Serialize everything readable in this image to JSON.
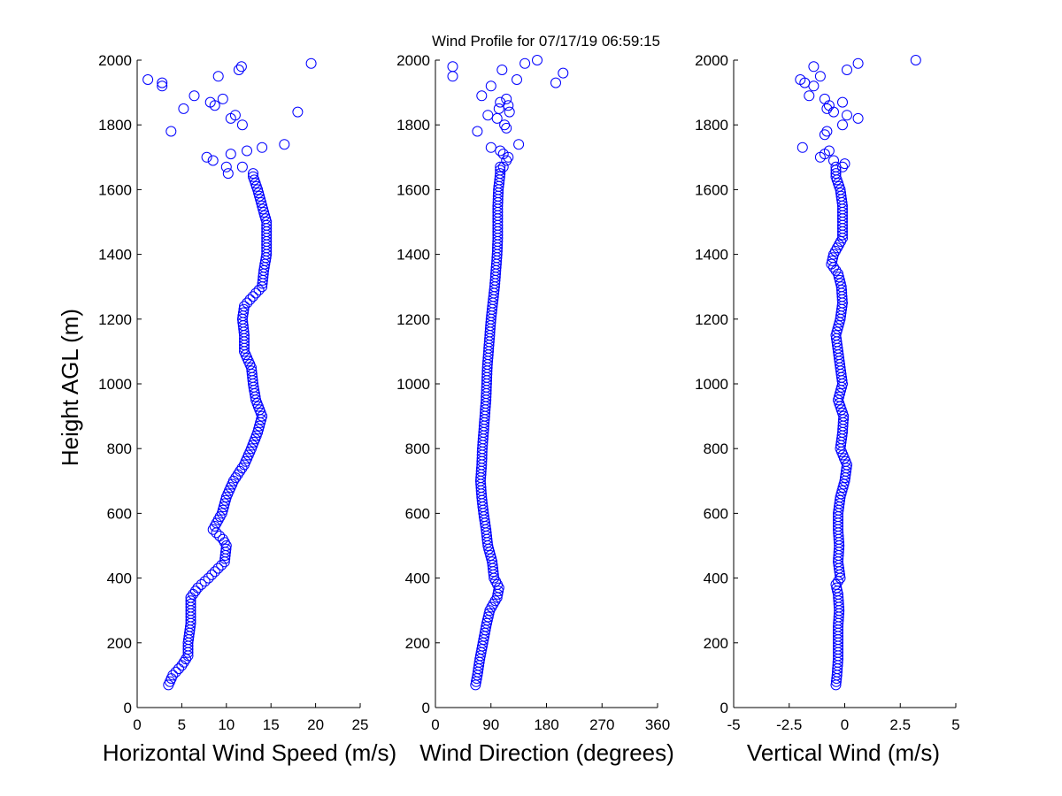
{
  "chart_data": {
    "type": "scatter",
    "title": "Wind Profile for  07/17/19 06:59:15",
    "ylabel": "Height AGL (m)",
    "ylim": [
      0,
      2000
    ],
    "yticks": [
      0,
      200,
      400,
      600,
      800,
      1000,
      1200,
      1400,
      1600,
      1800,
      2000
    ],
    "marker_color": "#0000ff",
    "panels": [
      {
        "id": "speed",
        "xlabel": "Horizontal Wind Speed (m/s)",
        "xlim": [
          0,
          25
        ],
        "xticks": [
          0,
          5,
          10,
          15,
          20,
          25
        ],
        "xtick_labels": [
          "0",
          "5",
          "10",
          "15",
          "20",
          "25"
        ],
        "profile": [
          [
            70,
            3.5
          ],
          [
            100,
            4.0
          ],
          [
            130,
            5.0
          ],
          [
            160,
            5.7
          ],
          [
            200,
            5.7
          ],
          [
            260,
            6.0
          ],
          [
            340,
            6.0
          ],
          [
            370,
            6.8
          ],
          [
            400,
            8.0
          ],
          [
            450,
            9.8
          ],
          [
            500,
            10.0
          ],
          [
            520,
            9.6
          ],
          [
            550,
            8.5
          ],
          [
            600,
            9.5
          ],
          [
            650,
            10.0
          ],
          [
            700,
            10.8
          ],
          [
            750,
            12.0
          ],
          [
            800,
            12.8
          ],
          [
            850,
            13.5
          ],
          [
            900,
            14.0
          ],
          [
            950,
            13.3
          ],
          [
            1000,
            13.0
          ],
          [
            1050,
            12.8
          ],
          [
            1100,
            12.0
          ],
          [
            1150,
            12.0
          ],
          [
            1200,
            11.8
          ],
          [
            1240,
            12.0
          ],
          [
            1280,
            13.3
          ],
          [
            1300,
            14.0
          ],
          [
            1350,
            14.2
          ],
          [
            1400,
            14.5
          ],
          [
            1450,
            14.5
          ],
          [
            1500,
            14.5
          ],
          [
            1550,
            14.0
          ],
          [
            1600,
            13.5
          ],
          [
            1640,
            13.0
          ]
        ],
        "scatter": [
          [
            1650,
            10.2
          ],
          [
            1670,
            10.0
          ],
          [
            1670,
            11.8
          ],
          [
            1690,
            8.5
          ],
          [
            1700,
            7.8
          ],
          [
            1710,
            10.5
          ],
          [
            1720,
            12.3
          ],
          [
            1730,
            14.0
          ],
          [
            1740,
            16.5
          ],
          [
            1780,
            3.8
          ],
          [
            1800,
            11.8
          ],
          [
            1820,
            10.5
          ],
          [
            1830,
            11.0
          ],
          [
            1840,
            18.0
          ],
          [
            1850,
            5.2
          ],
          [
            1860,
            8.7
          ],
          [
            1870,
            8.2
          ],
          [
            1880,
            9.6
          ],
          [
            1890,
            6.4
          ],
          [
            1920,
            2.8
          ],
          [
            1930,
            2.8
          ],
          [
            1940,
            1.2
          ],
          [
            1950,
            9.1
          ],
          [
            1970,
            11.4
          ],
          [
            1980,
            11.7
          ],
          [
            1990,
            19.5
          ]
        ],
        "scatter_below": 1650
      },
      {
        "id": "direction",
        "xlabel": "Wind Direction (degrees)",
        "xlim": [
          0,
          360
        ],
        "xticks": [
          0,
          90,
          180,
          270,
          360
        ],
        "xtick_labels": [
          "0",
          "90",
          "180",
          "270",
          "360"
        ],
        "profile": [
          [
            70,
            65
          ],
          [
            100,
            68
          ],
          [
            150,
            72
          ],
          [
            200,
            77
          ],
          [
            250,
            82
          ],
          [
            300,
            88
          ],
          [
            340,
            100
          ],
          [
            370,
            103
          ],
          [
            400,
            95
          ],
          [
            450,
            92
          ],
          [
            500,
            85
          ],
          [
            550,
            82
          ],
          [
            600,
            78
          ],
          [
            650,
            75
          ],
          [
            700,
            73
          ],
          [
            750,
            75
          ],
          [
            800,
            76
          ],
          [
            850,
            78
          ],
          [
            900,
            80
          ],
          [
            950,
            82
          ],
          [
            1000,
            83
          ],
          [
            1050,
            84
          ],
          [
            1100,
            86
          ],
          [
            1150,
            88
          ],
          [
            1200,
            90
          ],
          [
            1250,
            93
          ],
          [
            1300,
            96
          ],
          [
            1350,
            98
          ],
          [
            1400,
            100
          ],
          [
            1450,
            101
          ],
          [
            1500,
            101
          ],
          [
            1550,
            101
          ],
          [
            1600,
            102
          ],
          [
            1650,
            105
          ]
        ],
        "scatter": [
          [
            1670,
            110
          ],
          [
            1690,
            115
          ],
          [
            1700,
            118
          ],
          [
            1710,
            110
          ],
          [
            1720,
            105
          ],
          [
            1730,
            90
          ],
          [
            1740,
            135
          ],
          [
            1780,
            68
          ],
          [
            1790,
            115
          ],
          [
            1800,
            112
          ],
          [
            1820,
            100
          ],
          [
            1830,
            85
          ],
          [
            1840,
            120
          ],
          [
            1850,
            103
          ],
          [
            1860,
            118
          ],
          [
            1870,
            105
          ],
          [
            1880,
            115
          ],
          [
            1890,
            75
          ],
          [
            1920,
            90
          ],
          [
            1930,
            195
          ],
          [
            1940,
            132
          ],
          [
            1950,
            28
          ],
          [
            1960,
            207
          ],
          [
            1970,
            108
          ],
          [
            1980,
            28
          ],
          [
            1990,
            145
          ],
          [
            2000,
            165
          ]
        ],
        "scatter_below": 1670
      },
      {
        "id": "vertical",
        "xlabel": "Vertical Wind (m/s)",
        "xlim": [
          -5,
          5
        ],
        "xticks": [
          -5,
          -2.5,
          0,
          2.5,
          5
        ],
        "xtick_labels": [
          "-5",
          "-2.5",
          "0",
          "2.5",
          "5"
        ],
        "profile": [
          [
            70,
            -0.4
          ],
          [
            100,
            -0.35
          ],
          [
            150,
            -0.3
          ],
          [
            200,
            -0.3
          ],
          [
            250,
            -0.3
          ],
          [
            300,
            -0.25
          ],
          [
            350,
            -0.3
          ],
          [
            380,
            -0.4
          ],
          [
            400,
            -0.2
          ],
          [
            450,
            -0.3
          ],
          [
            500,
            -0.25
          ],
          [
            550,
            -0.3
          ],
          [
            600,
            -0.3
          ],
          [
            650,
            -0.2
          ],
          [
            700,
            0.0
          ],
          [
            750,
            0.1
          ],
          [
            800,
            -0.2
          ],
          [
            850,
            -0.1
          ],
          [
            900,
            -0.05
          ],
          [
            950,
            -0.3
          ],
          [
            1000,
            -0.1
          ],
          [
            1050,
            -0.2
          ],
          [
            1100,
            -0.3
          ],
          [
            1150,
            -0.4
          ],
          [
            1200,
            -0.2
          ],
          [
            1250,
            -0.1
          ],
          [
            1300,
            -0.15
          ],
          [
            1340,
            -0.3
          ],
          [
            1370,
            -0.6
          ],
          [
            1400,
            -0.5
          ],
          [
            1450,
            -0.1
          ],
          [
            1500,
            -0.1
          ],
          [
            1550,
            -0.1
          ],
          [
            1600,
            -0.2
          ],
          [
            1640,
            -0.4
          ]
        ],
        "scatter": [
          [
            1670,
            -0.1
          ],
          [
            1680,
            0.0
          ],
          [
            1690,
            -0.5
          ],
          [
            1700,
            -1.1
          ],
          [
            1710,
            -0.9
          ],
          [
            1720,
            -0.7
          ],
          [
            1730,
            -1.9
          ],
          [
            1770,
            -0.9
          ],
          [
            1780,
            -0.8
          ],
          [
            1800,
            -0.1
          ],
          [
            1820,
            0.6
          ],
          [
            1830,
            0.1
          ],
          [
            1840,
            -0.5
          ],
          [
            1850,
            -0.8
          ],
          [
            1860,
            -0.7
          ],
          [
            1870,
            -0.1
          ],
          [
            1880,
            -0.9
          ],
          [
            1890,
            -1.6
          ],
          [
            1920,
            -1.4
          ],
          [
            1930,
            -1.8
          ],
          [
            1940,
            -2.0
          ],
          [
            1950,
            -1.1
          ],
          [
            1970,
            0.1
          ],
          [
            1980,
            -1.4
          ],
          [
            1990,
            0.6
          ],
          [
            2000,
            3.2
          ]
        ],
        "scatter_below": 1670
      }
    ]
  }
}
